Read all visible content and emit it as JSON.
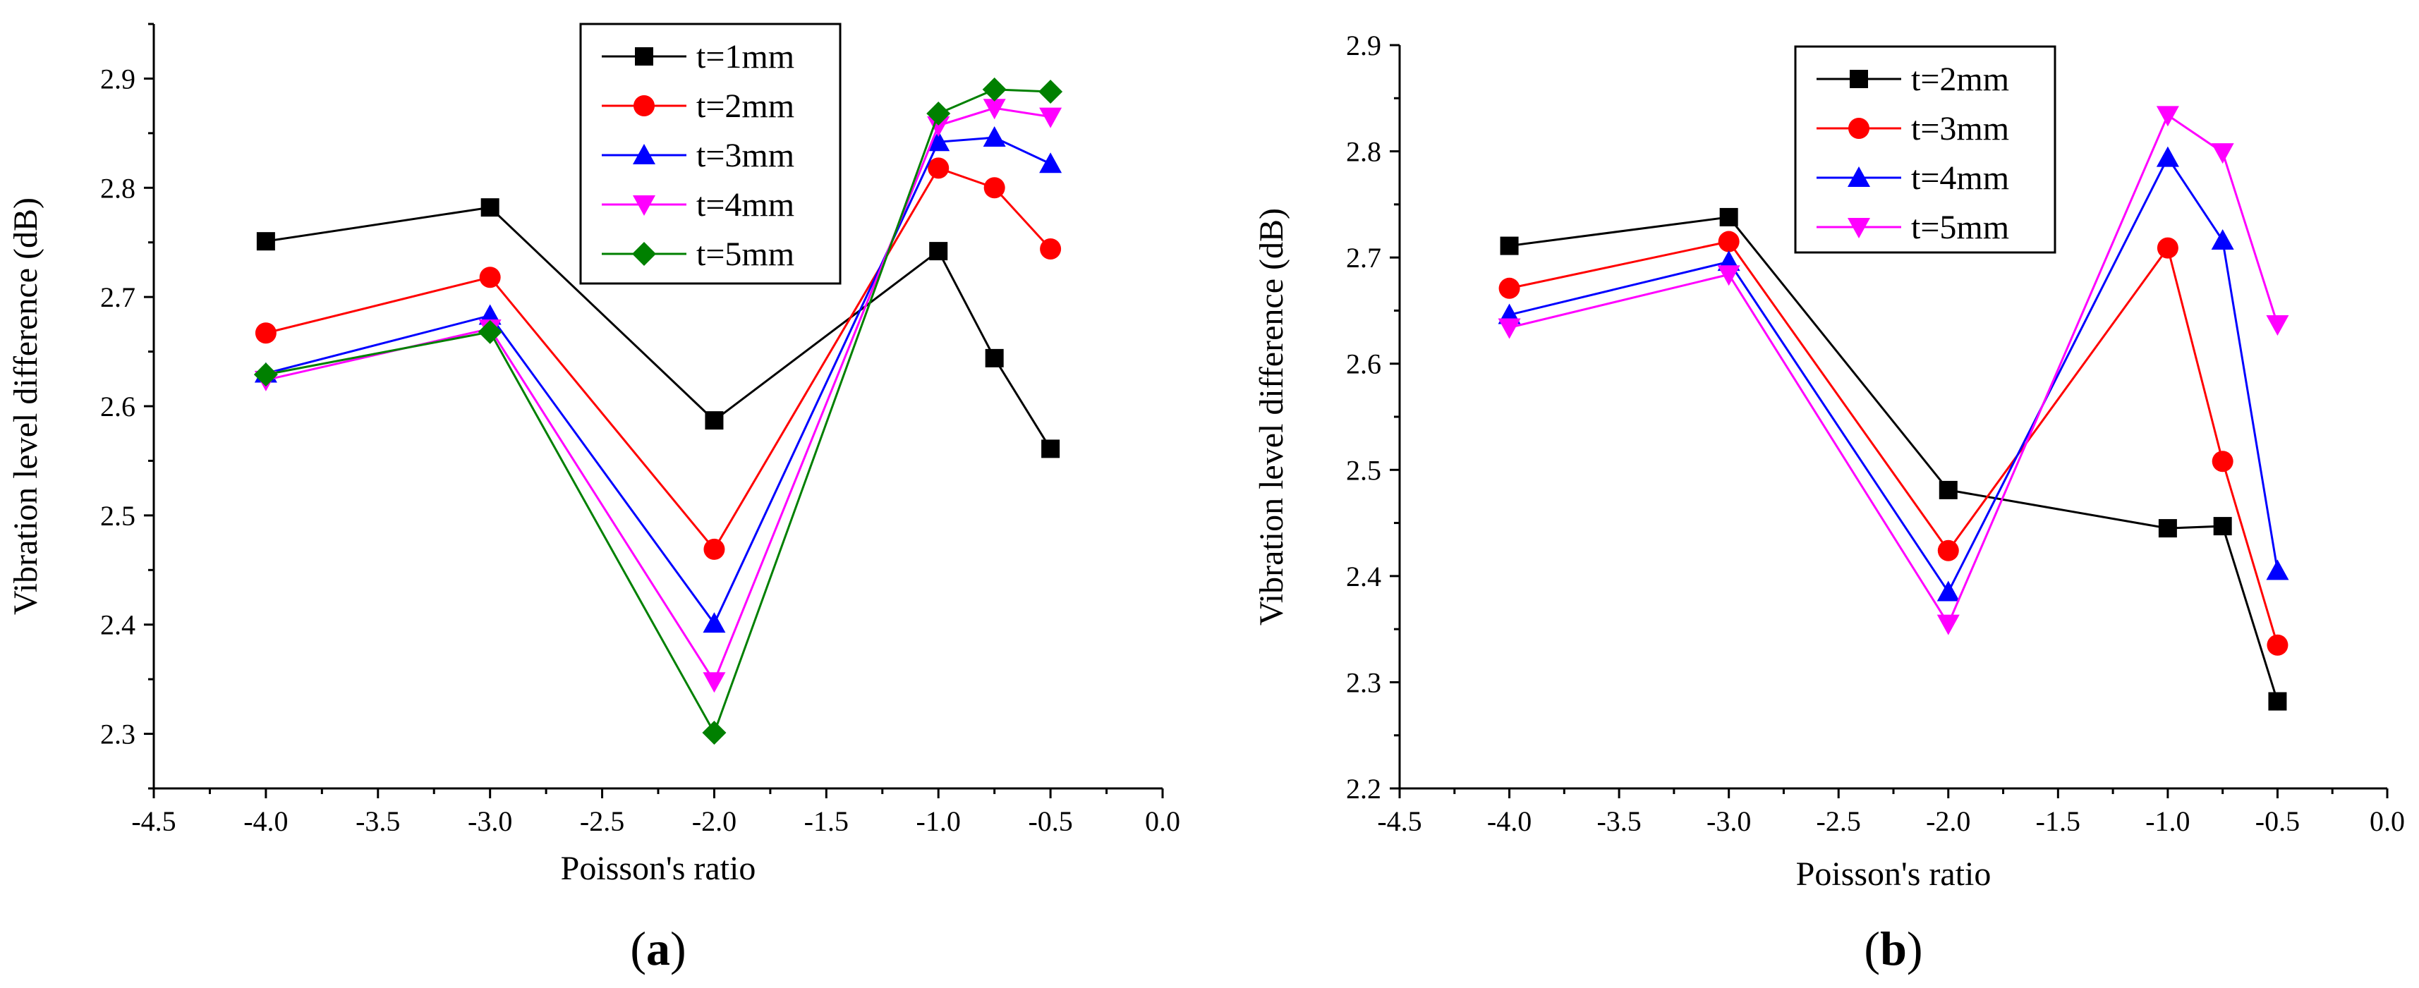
{
  "figure": {
    "panels": [
      {
        "id": "a",
        "label_open": "(",
        "label_letter": "a",
        "label_close": ")"
      },
      {
        "id": "b",
        "label_open": "(",
        "label_letter": "b",
        "label_close": ")"
      }
    ]
  },
  "chart_data": [
    {
      "type": "line",
      "panel": "a",
      "title": "",
      "xlabel": "Poisson's ratio",
      "ylabel": "Vibration level difference (dB)",
      "xlim": [
        -4.5,
        0.0
      ],
      "ylim": [
        2.25,
        2.95
      ],
      "xticks": [
        -4.5,
        -4.0,
        -3.5,
        -3.0,
        -2.5,
        -2.0,
        -1.5,
        -1.0,
        -0.5,
        0.0
      ],
      "xtick_labels": [
        "-4.5",
        "-4.0",
        "-3.5",
        "-3.0",
        "-2.5",
        "-2.0",
        "-1.5",
        "-1.0",
        "-0.5",
        "0.0"
      ],
      "yticks": [
        2.3,
        2.4,
        2.5,
        2.6,
        2.7,
        2.8,
        2.9
      ],
      "ytick_labels": [
        "2.3",
        "2.4",
        "2.5",
        "2.6",
        "2.7",
        "2.8",
        "2.9"
      ],
      "grid": false,
      "legend_position": "top-center",
      "x": [
        -4.0,
        -3.0,
        -2.0,
        -1.0,
        -0.75,
        -0.5
      ],
      "series": [
        {
          "name": "t=1mm",
          "color": "#000000",
          "marker": "square",
          "values": [
            2.751,
            2.782,
            2.587,
            2.742,
            2.644,
            2.561
          ]
        },
        {
          "name": "t=2mm",
          "color": "#ff0000",
          "marker": "circle",
          "values": [
            2.667,
            2.718,
            2.469,
            2.818,
            2.8,
            2.744
          ]
        },
        {
          "name": "t=3mm",
          "color": "#0000ff",
          "marker": "triangle-up",
          "values": [
            2.63,
            2.683,
            2.401,
            2.842,
            2.846,
            2.822
          ]
        },
        {
          "name": "t=4mm",
          "color": "#ff00ff",
          "marker": "triangle-down",
          "values": [
            2.624,
            2.671,
            2.348,
            2.857,
            2.873,
            2.865
          ]
        },
        {
          "name": "t=5mm",
          "color": "#008000",
          "marker": "diamond",
          "values": [
            2.629,
            2.668,
            2.301,
            2.868,
            2.89,
            2.888
          ]
        }
      ]
    },
    {
      "type": "line",
      "panel": "b",
      "title": "",
      "xlabel": "Poisson's ratio",
      "ylabel": "Vibration level difference (dB)",
      "xlim": [
        -4.5,
        0.0
      ],
      "ylim": [
        2.2,
        2.9
      ],
      "xticks": [
        -4.5,
        -4.0,
        -3.5,
        -3.0,
        -2.5,
        -2.0,
        -1.5,
        -1.0,
        -0.5,
        0.0
      ],
      "xtick_labels": [
        "-4.5",
        "-4.0",
        "-3.5",
        "-3.0",
        "-2.5",
        "-2.0",
        "-1.5",
        "-1.0",
        "-0.5",
        "0.0"
      ],
      "yticks": [
        2.2,
        2.3,
        2.4,
        2.5,
        2.6,
        2.7,
        2.8,
        2.9
      ],
      "ytick_labels": [
        "2.2",
        "2.3",
        "2.4",
        "2.5",
        "2.6",
        "2.7",
        "2.8",
        "2.9"
      ],
      "grid": false,
      "legend_position": "top-center",
      "x": [
        -4.0,
        -3.0,
        -2.0,
        -1.0,
        -0.75,
        -0.5
      ],
      "series": [
        {
          "name": "t=2mm",
          "color": "#000000",
          "marker": "square",
          "values": [
            2.711,
            2.738,
            2.481,
            2.445,
            2.447,
            2.282
          ]
        },
        {
          "name": "t=3mm",
          "color": "#ff0000",
          "marker": "circle",
          "values": [
            2.671,
            2.715,
            2.424,
            2.709,
            2.508,
            2.335
          ]
        },
        {
          "name": "t=4mm",
          "color": "#0000ff",
          "marker": "triangle-up",
          "values": [
            2.646,
            2.696,
            2.385,
            2.794,
            2.716,
            2.405
          ]
        },
        {
          "name": "t=5mm",
          "color": "#ff00ff",
          "marker": "triangle-down",
          "values": [
            2.634,
            2.684,
            2.355,
            2.834,
            2.799,
            2.637
          ]
        }
      ]
    }
  ]
}
